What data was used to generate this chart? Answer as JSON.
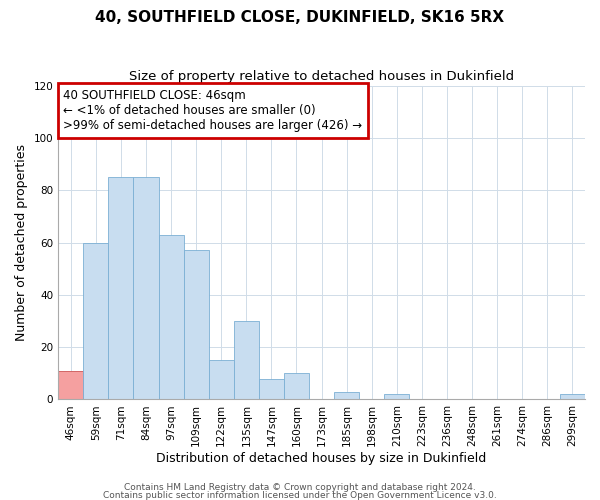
{
  "title": "40, SOUTHFIELD CLOSE, DUKINFIELD, SK16 5RX",
  "subtitle": "Size of property relative to detached houses in Dukinfield",
  "xlabel": "Distribution of detached houses by size in Dukinfield",
  "ylabel": "Number of detached properties",
  "bin_labels": [
    "46sqm",
    "59sqm",
    "71sqm",
    "84sqm",
    "97sqm",
    "109sqm",
    "122sqm",
    "135sqm",
    "147sqm",
    "160sqm",
    "173sqm",
    "185sqm",
    "198sqm",
    "210sqm",
    "223sqm",
    "236sqm",
    "248sqm",
    "261sqm",
    "274sqm",
    "286sqm",
    "299sqm"
  ],
  "bar_heights": [
    11,
    60,
    85,
    85,
    63,
    57,
    15,
    30,
    8,
    10,
    0,
    3,
    0,
    2,
    0,
    0,
    0,
    0,
    0,
    0,
    2
  ],
  "highlight_index": 0,
  "bar_color": "#c8ddf0",
  "bar_edge_color": "#7bafd4",
  "highlight_color": "#f5a0a0",
  "highlight_edge_color": "#cc5555",
  "ylim": [
    0,
    120
  ],
  "yticks": [
    0,
    20,
    40,
    60,
    80,
    100,
    120
  ],
  "annotation_title": "40 SOUTHFIELD CLOSE: 46sqm",
  "annotation_line1": "← <1% of detached houses are smaller (0)",
  "annotation_line2": ">99% of semi-detached houses are larger (426) →",
  "annotation_box_color": "#ffffff",
  "annotation_box_edge": "#cc0000",
  "footer_line1": "Contains HM Land Registry data © Crown copyright and database right 2024.",
  "footer_line2": "Contains public sector information licensed under the Open Government Licence v3.0.",
  "title_fontsize": 11,
  "subtitle_fontsize": 9.5,
  "axis_label_fontsize": 9,
  "tick_fontsize": 7.5,
  "annotation_fontsize": 8.5,
  "footer_fontsize": 6.5,
  "grid_color": "#d0dce8"
}
